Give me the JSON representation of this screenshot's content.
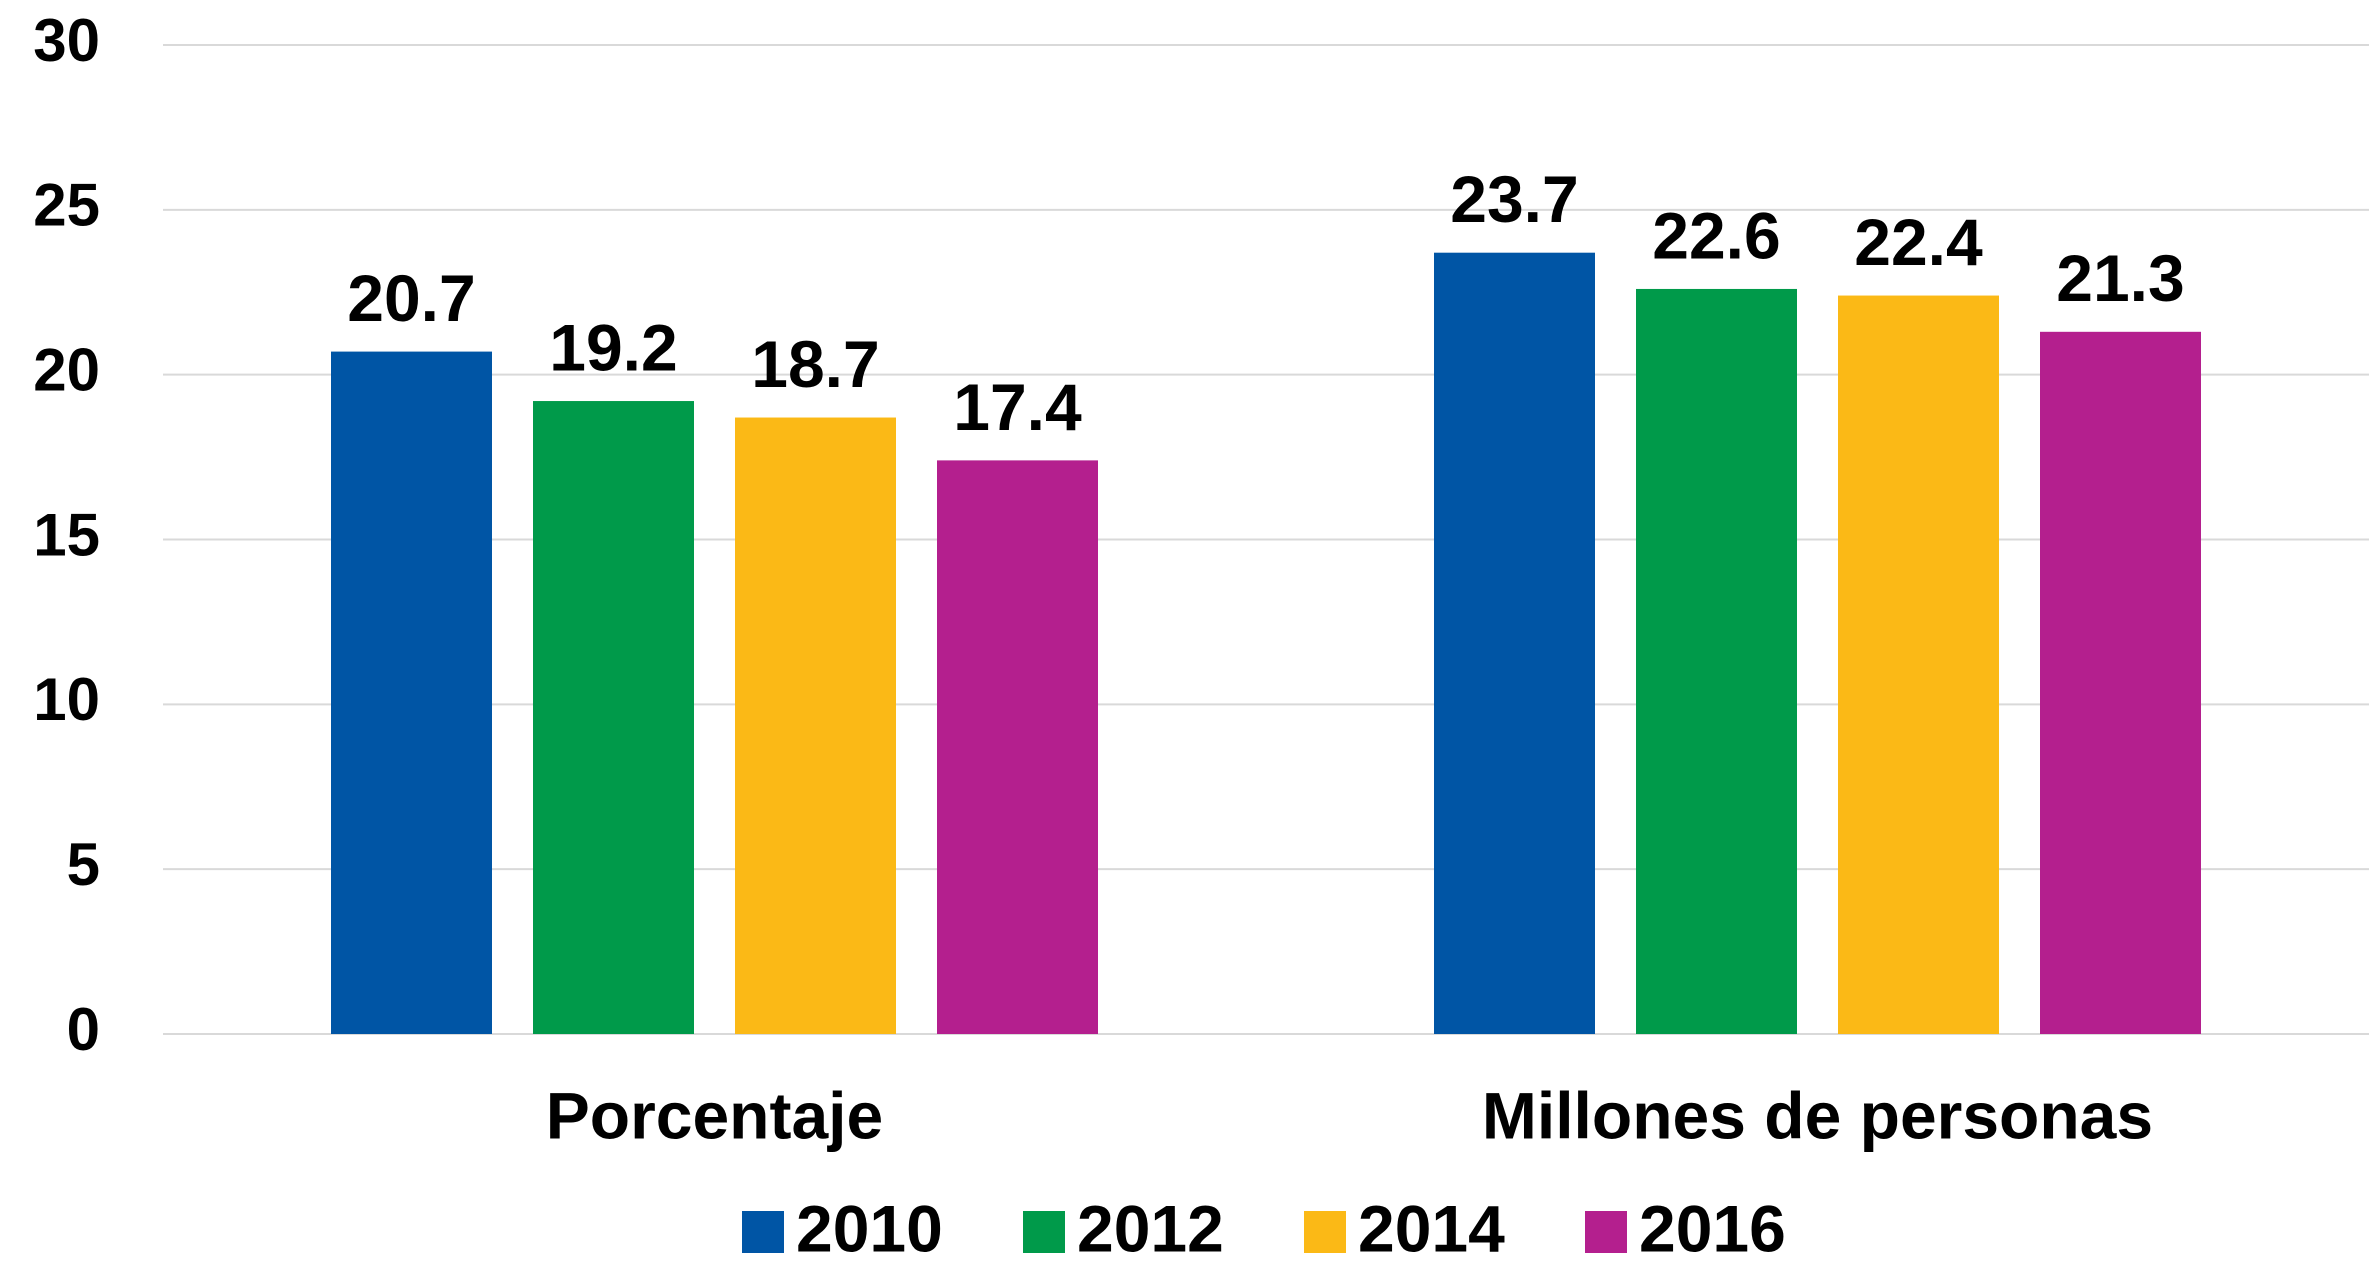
{
  "chart_data": {
    "type": "bar",
    "categories": [
      "Porcentaje",
      "Millones de personas"
    ],
    "series": [
      {
        "name": "2010",
        "color": "#0055a5",
        "values": [
          20.7,
          23.7
        ]
      },
      {
        "name": "2012",
        "color": "#009a4a",
        "values": [
          19.2,
          22.6
        ]
      },
      {
        "name": "2014",
        "color": "#fbb916",
        "values": [
          18.7,
          22.4
        ]
      },
      {
        "name": "2016",
        "color": "#b41f8e",
        "values": [
          17.4,
          21.3
        ]
      }
    ],
    "ylim": [
      0,
      30
    ],
    "yticks": [
      0,
      5,
      10,
      15,
      20,
      25,
      30
    ],
    "grid": true,
    "legend": "bottom"
  }
}
